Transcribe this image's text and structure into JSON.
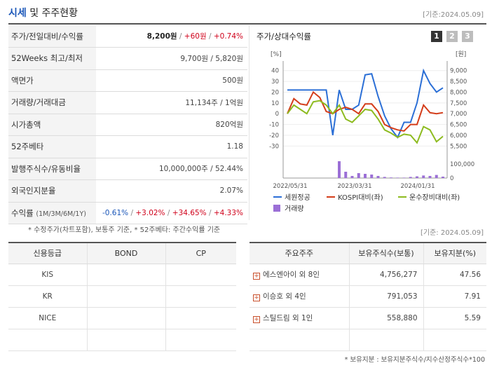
{
  "header": {
    "title_accent": "시세",
    "title_rest": " 및 주주현황",
    "date": "[기준:2024.05.09]"
  },
  "info_rows": [
    {
      "label": "주가/전일대비/수익률",
      "price": "8,200원",
      "change": "+60원",
      "rate": "+0.74%"
    },
    {
      "label": "52Weeks 최고/최저",
      "value": "9,700원 / 5,820원"
    },
    {
      "label": "액면가",
      "value": "500원"
    },
    {
      "label": "거래량/거래대금",
      "value": "11,134주 / 1억원"
    },
    {
      "label": "시가총액",
      "value": "820억원"
    },
    {
      "label": "52주베타",
      "value": "1.18"
    },
    {
      "label": "발행주식수/유동비율",
      "value": "10,000,000주 / 52.44%"
    },
    {
      "label": "외국인지분율",
      "value": "2.07%"
    },
    {
      "label": "수익률",
      "label_sub": "(1M/3M/6M/1Y)",
      "r1": "-0.61%",
      "r2": "+3.02%",
      "r3": "+34.65%",
      "r4": "+4.33%"
    }
  ],
  "footnote1": "* 수정주가(차트포함), 보통주 기준, * 52주베타: 주간수익률 기준",
  "date_mid": "[기준: 2024.05.09]",
  "chart": {
    "title": "주가/상대수익률",
    "pages": [
      "1",
      "2",
      "3"
    ],
    "left_unit": "[%]",
    "right_unit": "[원]",
    "volume_tick": "100,000",
    "volume_zero": "0",
    "x_labels": [
      "2022/05/31",
      "2023/03/31",
      "2024/01/31"
    ],
    "legend": [
      "세원정공",
      "KOSPI대비(좌)",
      "운수장비대비(좌)",
      "거래량"
    ],
    "colors": {
      "price": "#2b6fd6",
      "kospi": "#d43d1a",
      "sector": "#8dbb1f",
      "volume": "#9b6fd6"
    }
  },
  "chart_data": {
    "type": "line",
    "left_axis": {
      "unit": "%",
      "ylim": [
        -35,
        45
      ],
      "ticks": [
        40,
        30,
        20,
        10,
        0,
        -10,
        -20,
        -30
      ]
    },
    "right_axis": {
      "unit": "원",
      "ylim": [
        5250,
        9250
      ],
      "ticks": [
        9000,
        8500,
        8000,
        7500,
        7000,
        6500,
        6000,
        5500
      ]
    },
    "series": [
      {
        "name": "세원정공",
        "axis": "right",
        "values": [
          8100,
          8100,
          8100,
          8100,
          8100,
          8100,
          8100,
          6000,
          8100,
          7200,
          7200,
          7400,
          8800,
          8850,
          7800,
          6900,
          6300,
          5900,
          6600,
          6600,
          7500,
          9000,
          8400,
          8000,
          8200
        ]
      },
      {
        "name": "KOSPI대비(좌)",
        "axis": "left",
        "values": [
          0,
          14,
          9,
          8,
          20,
          15,
          2,
          0,
          4,
          6,
          4,
          0,
          9,
          9,
          2,
          -10,
          -13,
          -15,
          -16,
          -10,
          -10,
          8,
          1,
          0,
          1
        ]
      },
      {
        "name": "운수장비대비(좌)",
        "axis": "left",
        "values": [
          0,
          8,
          4,
          0,
          11,
          12,
          8,
          0,
          8,
          -5,
          -8,
          -2,
          4,
          3,
          -5,
          -15,
          -18,
          -22,
          -19,
          -20,
          -27,
          -12,
          -15,
          -26,
          -21
        ]
      },
      {
        "name": "거래량",
        "axis": "volume",
        "values": [
          0,
          0,
          0,
          0,
          0,
          0,
          0,
          0,
          120000,
          45000,
          15000,
          35000,
          30000,
          25000,
          15000,
          8000,
          4000,
          3000,
          3000,
          8000,
          12000,
          18000,
          15000,
          22000,
          10000
        ]
      }
    ],
    "x_labels": [
      "2022/05/31",
      "2023/03/31",
      "2024/01/31"
    ],
    "volume_axis": {
      "ylim": [
        0,
        130000
      ],
      "ticks": [
        100000,
        0
      ]
    }
  },
  "credit": {
    "headers": [
      "신용등급",
      "BOND",
      "CP"
    ],
    "rows": [
      {
        "agency": "KIS"
      },
      {
        "agency": "KR"
      },
      {
        "agency": "NICE"
      }
    ]
  },
  "holders": {
    "headers": [
      "주요주주",
      "보유주식수(보통)",
      "보유지분(%)"
    ],
    "rows": [
      {
        "name": "에스엔아이 외 8인",
        "shares": "4,756,277",
        "pct": "47.56"
      },
      {
        "name": "이승호 외 4인",
        "shares": "791,053",
        "pct": "7.91"
      },
      {
        "name": "스틸드림 외 1인",
        "shares": "558,880",
        "pct": "5.59"
      }
    ]
  },
  "footnote2": "* 보유지분 : 보유지분주식수/지수산정주식수*100"
}
